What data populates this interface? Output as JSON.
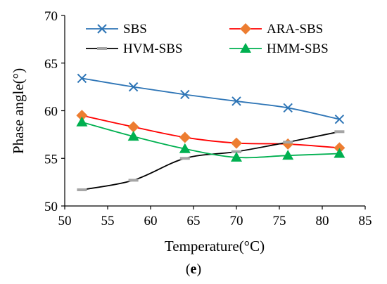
{
  "chart_data": {
    "type": "line",
    "xlabel": "Temperature(°C)",
    "ylabel": "Phase angle(°)",
    "xlim": [
      50,
      85
    ],
    "ylim": [
      50,
      70
    ],
    "xticks": [
      50,
      55,
      60,
      65,
      70,
      75,
      80,
      85
    ],
    "yticks": [
      50,
      55,
      60,
      65,
      70
    ],
    "grid": false,
    "legend_position": "top",
    "x": [
      52,
      58,
      64,
      70,
      76,
      82
    ],
    "series": [
      {
        "name": "SBS",
        "color": "#2E75B6",
        "marker": "x",
        "values": [
          63.4,
          62.5,
          61.7,
          61.0,
          60.3,
          59.1
        ]
      },
      {
        "name": "ARA-SBS",
        "color": "#FF0000",
        "marker_color": "#ED7D31",
        "marker": "diamond",
        "values": [
          59.5,
          58.3,
          57.2,
          56.6,
          56.5,
          56.1
        ]
      },
      {
        "name": "HVM-SBS",
        "color": "#000000",
        "marker_color": "#A5A5A5",
        "marker": "dash",
        "values": [
          51.7,
          52.7,
          55.0,
          55.7,
          56.7,
          57.8
        ]
      },
      {
        "name": "HMM-SBS",
        "color": "#00B050",
        "marker": "triangle",
        "values": [
          58.8,
          57.3,
          56.0,
          55.1,
          55.3,
          55.5
        ]
      }
    ]
  },
  "caption": {
    "open": "(",
    "letter": "e",
    "close": ")"
  }
}
